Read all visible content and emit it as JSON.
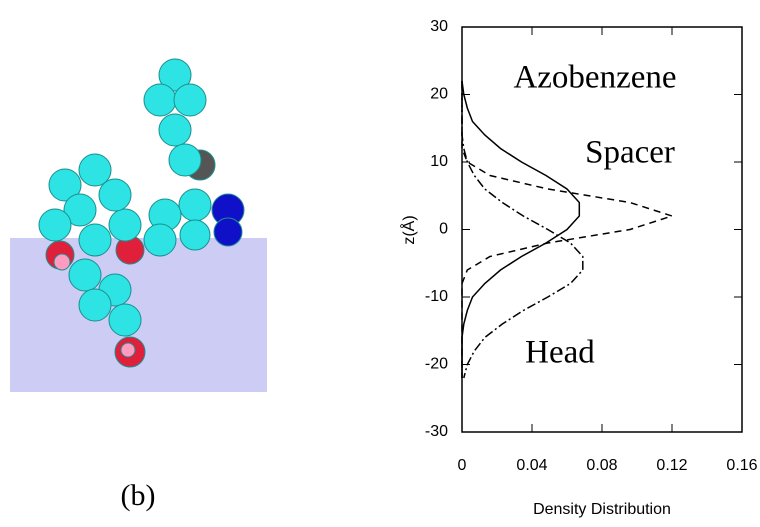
{
  "caption": "(b)",
  "chart_data": {
    "type": "line",
    "xlabel": "Density Distribution",
    "ylabel": "z(Å)",
    "xlim": [
      0,
      0.16
    ],
    "xticks": [
      0,
      0.04,
      0.08,
      0.12,
      0.16
    ],
    "ylim": [
      -30,
      30
    ],
    "yticks": [
      -30,
      -20,
      -10,
      0,
      10,
      20,
      30
    ],
    "z": [
      22,
      20,
      18,
      16,
      14,
      12,
      10,
      8,
      6,
      4,
      2,
      0,
      -2,
      -4,
      -6,
      -8,
      -10,
      -12,
      -14,
      -16,
      -18,
      -20,
      -22
    ],
    "series": [
      {
        "name": "Azobenzene",
        "color": "#000000",
        "dash": "none",
        "values": [
          0.0,
          0.001,
          0.003,
          0.006,
          0.013,
          0.022,
          0.034,
          0.048,
          0.06,
          0.067,
          0.067,
          0.06,
          0.048,
          0.034,
          0.022,
          0.013,
          0.006,
          0.003,
          0.001,
          0.0,
          0,
          0,
          0
        ]
      },
      {
        "name": "Spacer",
        "color": "#000000",
        "dash": "7 5",
        "values": [
          0,
          0,
          0,
          0,
          0,
          0.0,
          0.003,
          0.016,
          0.049,
          0.096,
          0.12,
          0.096,
          0.049,
          0.016,
          0.003,
          0.0,
          0,
          0,
          0,
          0,
          0,
          0,
          0
        ]
      },
      {
        "name": "Head",
        "color": "#000000",
        "dash": "9 3 2 3",
        "values": [
          0,
          0,
          0,
          0.0,
          0.0,
          0.001,
          0.003,
          0.007,
          0.013,
          0.023,
          0.035,
          0.049,
          0.062,
          0.069,
          0.069,
          0.062,
          0.049,
          0.035,
          0.023,
          0.013,
          0.007,
          0.003,
          0.001
        ]
      }
    ]
  }
}
